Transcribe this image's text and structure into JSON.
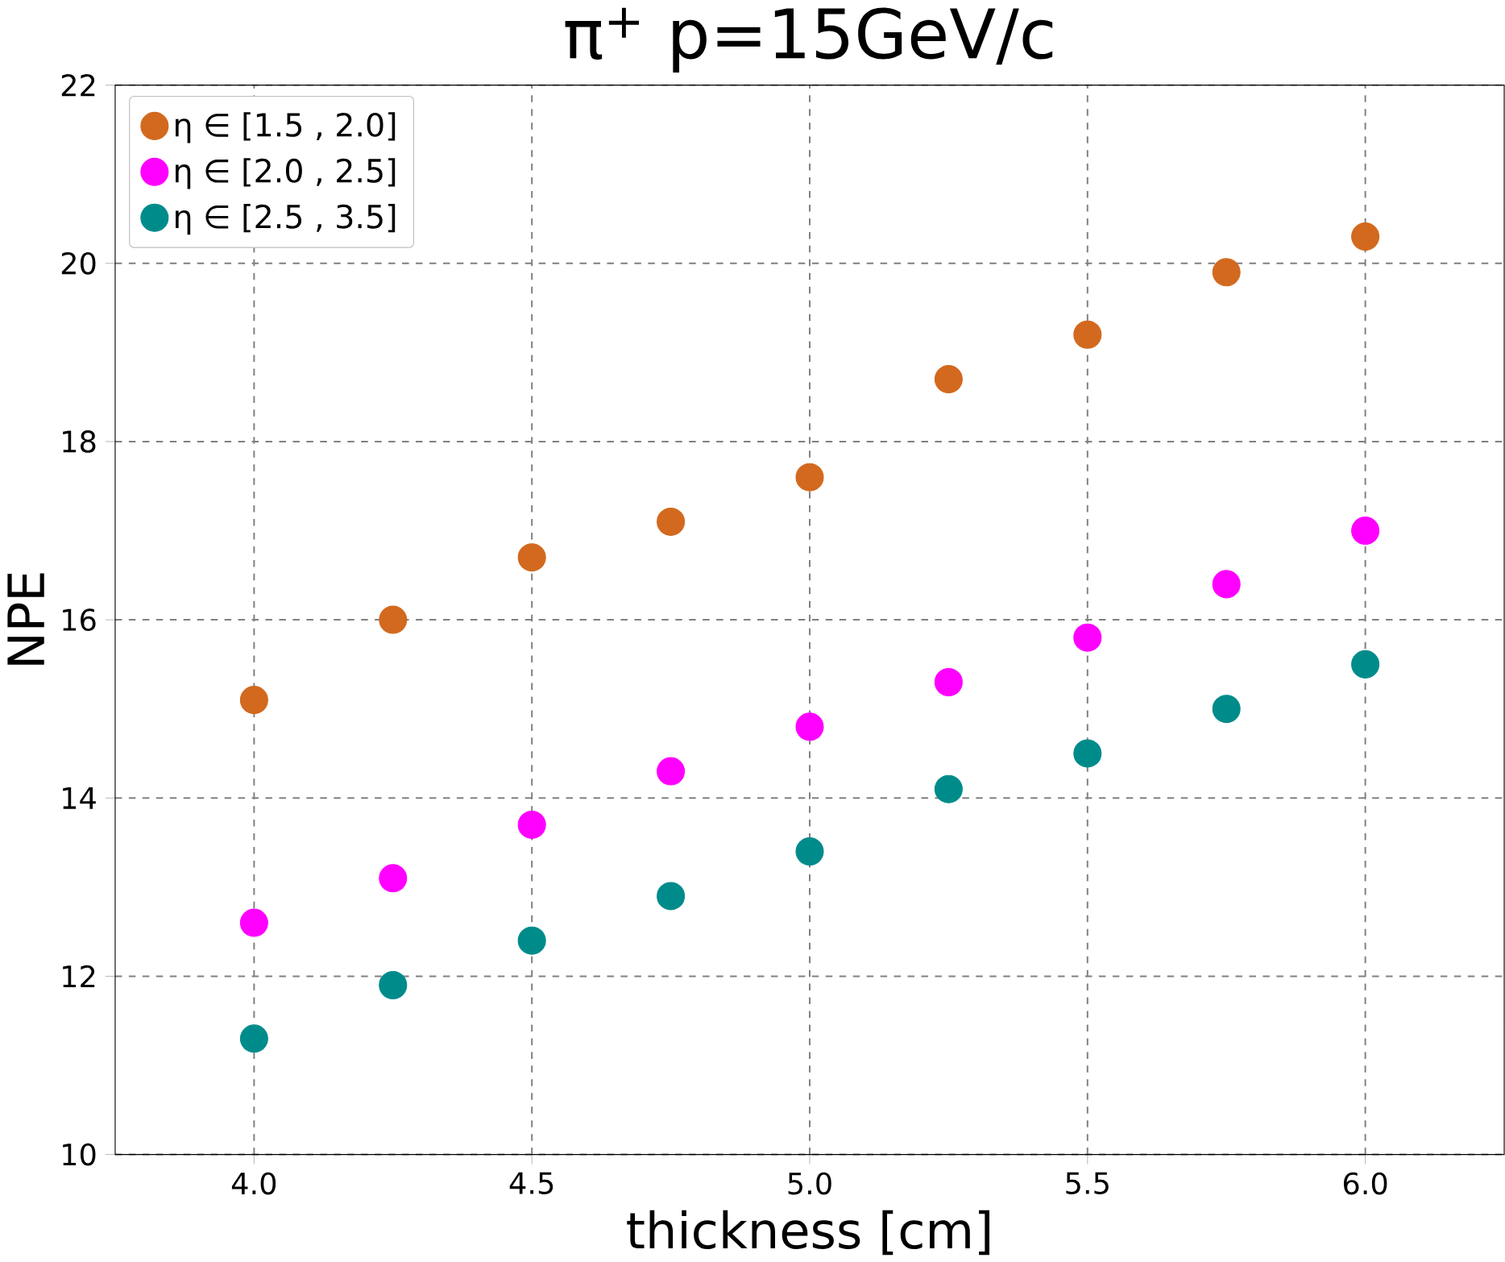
{
  "chart_data": {
    "type": "scatter",
    "title": "π$^{+}$    p=15GeV/c",
    "xlabel": "thickness [cm]",
    "ylabel": "NPE",
    "xlim": [
      3.75,
      6.25
    ],
    "xticks": [
      {
        "value": 4.0,
        "label": "4.0"
      },
      {
        "value": 4.5,
        "label": "4.5"
      },
      {
        "value": 5.0,
        "label": "5.0"
      },
      {
        "value": 5.5,
        "label": "5.5"
      },
      {
        "value": 6.0,
        "label": "6.0"
      }
    ],
    "ylim": [
      10,
      22
    ],
    "yticks": [
      10,
      12,
      14,
      16,
      18,
      20,
      22
    ],
    "x": [
      4.0,
      4.25,
      4.5,
      4.75,
      5.0,
      5.25,
      5.5,
      5.75,
      6.0
    ],
    "series": [
      {
        "name": "η ∈ [1.5 , 2.0]",
        "color": "#d2691e",
        "values": [
          15.1,
          16.0,
          16.7,
          17.1,
          17.6,
          18.7,
          19.2,
          19.9,
          20.3
        ]
      },
      {
        "name": "η ∈ [2.0 , 2.5]",
        "color": "#ff00ff",
        "values": [
          12.6,
          13.1,
          13.7,
          14.3,
          14.8,
          15.3,
          15.8,
          16.4,
          17.0
        ]
      },
      {
        "name": "η ∈ [2.5 , 3.5]",
        "color": "#008b8b",
        "values": [
          11.3,
          11.9,
          12.4,
          12.9,
          13.4,
          14.1,
          14.5,
          15.0,
          15.5
        ]
      }
    ],
    "grid": true,
    "legend": "top left",
    "marker": "circle"
  }
}
